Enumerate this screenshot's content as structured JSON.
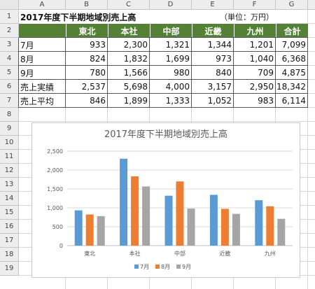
{
  "sheet": {
    "column_headers": [
      "A",
      "B",
      "C",
      "D",
      "E",
      "F",
      "G"
    ],
    "row_headers": [
      "1",
      "2",
      "3",
      "4",
      "5",
      "6",
      "7",
      "8",
      "9",
      "10",
      "11",
      "12",
      "13",
      "14",
      "15",
      "16",
      "17",
      "18",
      "19"
    ],
    "title": "2017年度下半期地域別売上高",
    "unit": "（単位：万円）",
    "header_fill": "#548235",
    "table": {
      "columns": [
        "東北",
        "本社",
        "中部",
        "近畿",
        "九州",
        "合計"
      ],
      "rows": [
        {
          "label": "7月",
          "values": [
            "933",
            "2,300",
            "1,321",
            "1,344",
            "1,201",
            "7,099"
          ]
        },
        {
          "label": "8月",
          "values": [
            "824",
            "1,832",
            "1,699",
            "973",
            "1,040",
            "6,368"
          ]
        },
        {
          "label": "9月",
          "values": [
            "780",
            "1,566",
            "980",
            "840",
            "709",
            "4,875"
          ]
        },
        {
          "label": "売上実績",
          "values": [
            "2,537",
            "5,698",
            "4,000",
            "3,157",
            "2,950",
            "18,342"
          ]
        },
        {
          "label": "売上平均",
          "values": [
            "846",
            "1,899",
            "1,333",
            "1,052",
            "983",
            "6,114"
          ]
        }
      ]
    }
  },
  "chart_data": {
    "type": "bar",
    "title": "2017年度下半期地域別売上高",
    "categories": [
      "東北",
      "本社",
      "中部",
      "近畿",
      "九州"
    ],
    "series": [
      {
        "name": "7月",
        "values": [
          933,
          2300,
          1321,
          1344,
          1201
        ],
        "color": "#5b9bd5"
      },
      {
        "name": "8月",
        "values": [
          824,
          1832,
          1699,
          973,
          1040
        ],
        "color": "#ed7d31"
      },
      {
        "name": "9月",
        "values": [
          780,
          1566,
          980,
          840,
          709
        ],
        "color": "#a5a5a5"
      }
    ],
    "yticks": [
      "0",
      "500",
      "1,000",
      "1,500",
      "2,000",
      "2,500"
    ],
    "ylim": [
      0,
      2500
    ],
    "grid": true,
    "legend": "bottom"
  }
}
